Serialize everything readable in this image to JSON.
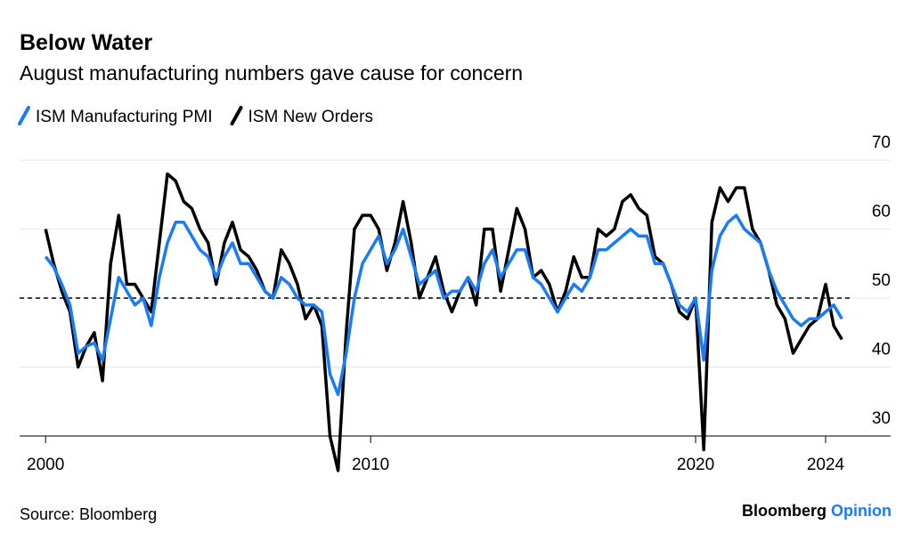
{
  "chart_data": {
    "type": "line",
    "title": "Below Water",
    "subtitle": "August manufacturing numbers gave cause for concern",
    "source": "Source: Bloomberg",
    "brand": [
      "Bloomberg",
      "Opinion"
    ],
    "x": [
      2000,
      2000.25,
      2000.5,
      2000.75,
      2001,
      2001.25,
      2001.5,
      2001.75,
      2002,
      2002.25,
      2002.5,
      2002.75,
      2003,
      2003.25,
      2003.5,
      2003.75,
      2004,
      2004.25,
      2004.5,
      2004.75,
      2005,
      2005.25,
      2005.5,
      2005.75,
      2006,
      2006.25,
      2006.5,
      2006.75,
      2007,
      2007.25,
      2007.5,
      2007.75,
      2008,
      2008.25,
      2008.5,
      2008.75,
      2009,
      2009.25,
      2009.5,
      2009.75,
      2010,
      2010.25,
      2010.5,
      2010.75,
      2011,
      2011.25,
      2011.5,
      2011.75,
      2012,
      2012.25,
      2012.5,
      2012.75,
      2013,
      2013.25,
      2013.5,
      2013.75,
      2014,
      2014.25,
      2014.5,
      2014.75,
      2015,
      2015.25,
      2015.5,
      2015.75,
      2016,
      2016.25,
      2016.5,
      2016.75,
      2017,
      2017.25,
      2017.5,
      2017.75,
      2018,
      2018.25,
      2018.5,
      2018.75,
      2019,
      2019.25,
      2019.5,
      2019.75,
      2020,
      2020.25,
      2020.5,
      2020.75,
      2021,
      2021.25,
      2021.5,
      2021.75,
      2022,
      2022.25,
      2022.5,
      2022.75,
      2023,
      2023.25,
      2023.5,
      2023.75,
      2024,
      2024.25,
      2024.5
    ],
    "series": [
      {
        "name": "ISM Manufacturing PMI",
        "color": "#1a7cf5",
        "values": [
          56,
          54.5,
          52,
          49,
          42,
          43,
          43.5,
          41,
          47,
          53,
          51,
          49,
          50,
          46,
          53,
          58,
          61,
          61,
          59,
          57,
          56,
          53,
          56,
          58,
          55,
          55,
          53,
          51,
          50,
          53,
          52,
          50,
          49,
          49,
          48,
          39,
          36,
          42,
          50,
          55,
          57,
          59,
          55,
          57,
          60,
          56,
          52,
          53,
          54,
          50,
          51,
          51,
          53,
          51,
          55,
          57,
          53,
          55,
          57,
          57,
          53,
          52,
          50,
          48,
          50,
          52,
          51,
          53,
          57,
          57,
          58,
          59,
          60,
          59,
          59,
          55,
          55,
          52,
          49,
          48,
          50,
          41,
          54,
          59,
          61,
          62,
          60,
          59,
          58,
          54,
          51,
          49,
          47,
          46,
          47,
          47,
          48,
          49,
          47
        ]
      },
      {
        "name": "ISM New Orders",
        "color": "#000000",
        "values": [
          60,
          55,
          51,
          48,
          40,
          43,
          45,
          38,
          55,
          62,
          52,
          52,
          50,
          48,
          58,
          68,
          67,
          64,
          63,
          60,
          58,
          52,
          58,
          61,
          57,
          56,
          54,
          51,
          50,
          57,
          55,
          52,
          47,
          49,
          46,
          30,
          25,
          45,
          60,
          62,
          62,
          60,
          54,
          58,
          64,
          58,
          50,
          53,
          56,
          51,
          48,
          51,
          53,
          49,
          60,
          60,
          51,
          57,
          63,
          60,
          53,
          54,
          52,
          48,
          51,
          56,
          53,
          53,
          60,
          59,
          60,
          64,
          65,
          63,
          62,
          56,
          55,
          52,
          48,
          47,
          50,
          28,
          61,
          66,
          64,
          66,
          66,
          60,
          58,
          54,
          49,
          47,
          42,
          44,
          46,
          47,
          52,
          46,
          44
        ]
      }
    ],
    "xlim": [
      1999.2,
      2026
    ],
    "xticks": [
      2000,
      2010,
      2020,
      2024
    ],
    "ylim": [
      30,
      70
    ],
    "yticks": [
      30,
      40,
      50,
      60,
      70
    ],
    "hline": 50,
    "grid": true
  }
}
